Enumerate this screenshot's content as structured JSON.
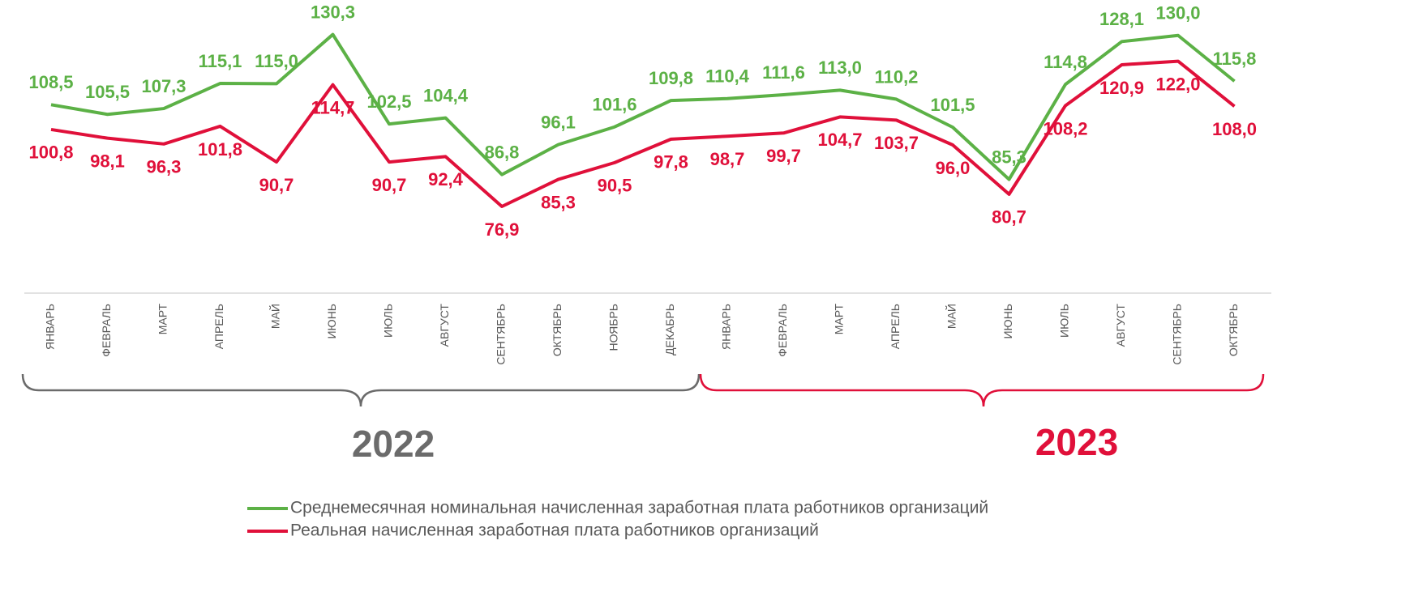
{
  "chart_data": {
    "type": "line",
    "categories": [
      "ЯНВАРЬ",
      "ФЕВРАЛЬ",
      "МАРТ",
      "АПРЕЛЬ",
      "МАЙ",
      "ИЮНЬ",
      "ИЮЛЬ",
      "АВГУСТ",
      "СЕНТЯБРЬ",
      "ОКТЯБРЬ",
      "НОЯБРЬ",
      "ДЕКАБРЬ",
      "ЯНВАРЬ",
      "ФЕВРАЛЬ",
      "МАРТ",
      "АПРЕЛЬ",
      "МАЙ",
      "ИЮНЬ",
      "ИЮЛЬ",
      "АВГУСТ",
      "СЕНТЯБРЬ",
      "ОКТЯБРЬ"
    ],
    "annotations": [
      "2022",
      "2023"
    ],
    "ylim": [
      50,
      141
    ],
    "series": [
      {
        "name": "Среднемесячная номинальная начисленная заработная плата работников организаций",
        "color": "#5cb146",
        "values": [
          108.5,
          105.5,
          107.3,
          115.1,
          115.0,
          130.3,
          102.5,
          104.4,
          86.8,
          96.1,
          101.6,
          109.8,
          110.4,
          111.6,
          113.0,
          110.2,
          101.5,
          85.3,
          114.8,
          128.1,
          130.0,
          115.8
        ],
        "value_labels": [
          "108,5",
          "105,5",
          "107,3",
          "115,1",
          "115,0",
          "130,3",
          "102,5",
          "104,4",
          "86,8",
          "96,1",
          "101,6",
          "109,8",
          "110,4",
          "111,6",
          "113,0",
          "110,2",
          "101,5",
          "85,3",
          "114,8",
          "128,1",
          "130,0",
          "115,8"
        ]
      },
      {
        "name": "Реальная начисленная заработная плата работников организаций",
        "color": "#e0103a",
        "values": [
          100.8,
          98.1,
          96.3,
          101.8,
          90.7,
          114.7,
          90.7,
          92.4,
          76.9,
          85.3,
          90.5,
          97.8,
          98.7,
          99.7,
          104.7,
          103.7,
          96.0,
          80.7,
          108.2,
          120.9,
          122.0,
          108.0
        ],
        "value_labels": [
          "100,8",
          "98,1",
          "96,3",
          "101,8",
          "90,7",
          "114,7",
          "90,7",
          "92,4",
          "76,9",
          "85,3",
          "90,5",
          "97,8",
          "98,7",
          "99,7",
          "104,7",
          "103,7",
          "96,0",
          "80,7",
          "108,2",
          "120,9",
          "122,0",
          "108,0"
        ]
      }
    ]
  }
}
